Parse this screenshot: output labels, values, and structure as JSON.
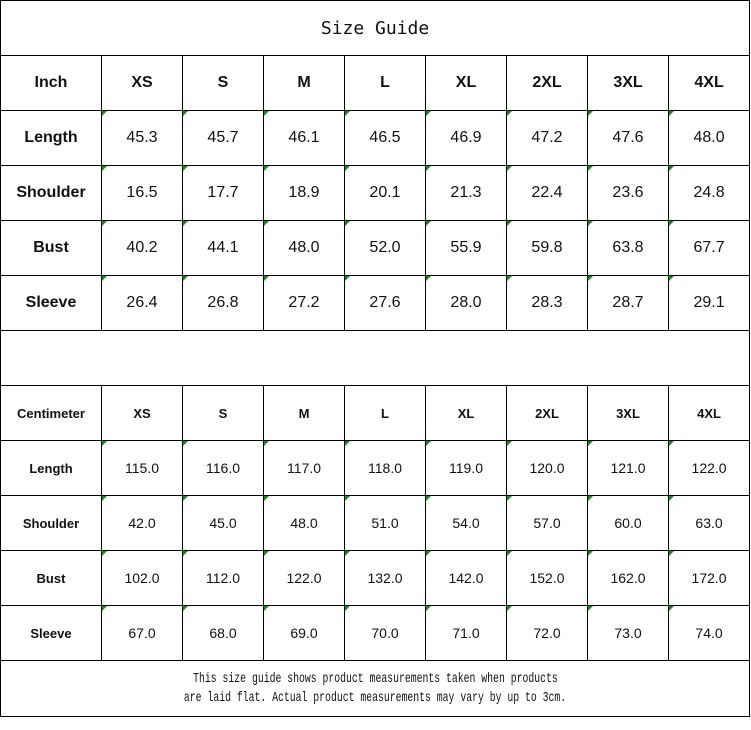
{
  "title": "Size Guide",
  "accent_color": "#1a8a1a",
  "inch": {
    "header": [
      "Inch",
      "XS",
      "S",
      "M",
      "L",
      "XL",
      "2XL",
      "3XL",
      "4XL"
    ],
    "rows": [
      {
        "label": "Length",
        "values": [
          "45.3",
          "45.7",
          "46.1",
          "46.5",
          "46.9",
          "47.2",
          "47.6",
          "48.0"
        ]
      },
      {
        "label": "Shoulder",
        "values": [
          "16.5",
          "17.7",
          "18.9",
          "20.1",
          "21.3",
          "22.4",
          "23.6",
          "24.8"
        ]
      },
      {
        "label": "Bust",
        "values": [
          "40.2",
          "44.1",
          "48.0",
          "52.0",
          "55.9",
          "59.8",
          "63.8",
          "67.7"
        ]
      },
      {
        "label": "Sleeve",
        "values": [
          "26.4",
          "26.8",
          "27.2",
          "27.6",
          "28.0",
          "28.3",
          "28.7",
          "29.1"
        ]
      }
    ]
  },
  "centimeter": {
    "header": [
      "Centimeter",
      "XS",
      "S",
      "M",
      "L",
      "XL",
      "2XL",
      "3XL",
      "4XL"
    ],
    "rows": [
      {
        "label": "Length",
        "values": [
          "115.0",
          "116.0",
          "117.0",
          "118.0",
          "119.0",
          "120.0",
          "121.0",
          "122.0"
        ]
      },
      {
        "label": "Shoulder",
        "values": [
          "42.0",
          "45.0",
          "48.0",
          "51.0",
          "54.0",
          "57.0",
          "60.0",
          "63.0"
        ]
      },
      {
        "label": "Bust",
        "values": [
          "102.0",
          "112.0",
          "122.0",
          "132.0",
          "142.0",
          "152.0",
          "162.0",
          "172.0"
        ]
      },
      {
        "label": "Sleeve",
        "values": [
          "67.0",
          "68.0",
          "69.0",
          "70.0",
          "71.0",
          "72.0",
          "73.0",
          "74.0"
        ]
      }
    ]
  },
  "footer": {
    "line1": "This size guide shows product measurements taken when products",
    "line2": "are laid flat. Actual product measurements may vary by up to 3cm."
  }
}
